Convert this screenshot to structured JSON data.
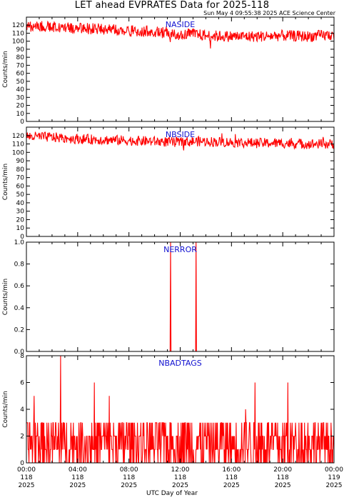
{
  "figure": {
    "title": "LET ahead EVPRATES Data for 2025-118",
    "subtitle": "Sun May  4 09:55:38 2025 ACE Science Center",
    "xlabel": "UTC Day of Year"
  },
  "colors": {
    "series": "#ff0000",
    "panel_title": "#1010d0",
    "axes": "#000000"
  },
  "chart_data": [
    {
      "type": "line",
      "title": "NASIDE",
      "ylabel": "Counts/min",
      "ylim": [
        0,
        130
      ],
      "yticks": [
        0,
        10,
        20,
        30,
        40,
        50,
        60,
        70,
        80,
        90,
        100,
        110,
        120
      ],
      "xlim": [
        0,
        24
      ],
      "x": [
        0,
        2,
        4,
        6,
        8,
        10,
        11,
        12,
        13,
        14,
        16,
        18,
        20,
        22,
        24
      ],
      "series": [
        {
          "values": [
            119,
            118,
            116,
            115,
            113,
            112,
            110,
            108,
            109,
            107,
            106,
            106,
            107,
            106,
            108
          ]
        }
      ],
      "noise": 7
    },
    {
      "type": "line",
      "title": "NBSIDE",
      "ylabel": "Counts/min",
      "ylim": [
        0,
        130
      ],
      "yticks": [
        0,
        10,
        20,
        30,
        40,
        50,
        60,
        70,
        80,
        90,
        100,
        110,
        120
      ],
      "xlim": [
        0,
        24
      ],
      "x": [
        0,
        2,
        4,
        6,
        8,
        10,
        12,
        13,
        14,
        16,
        18,
        20,
        22,
        24
      ],
      "series": [
        {
          "values": [
            119,
            118,
            116,
            115,
            114,
            113,
            112,
            113,
            113,
            112,
            111,
            111,
            110,
            110
          ]
        }
      ],
      "noise": 6
    },
    {
      "type": "line",
      "title": "NERROR",
      "ylabel": "Counts/min",
      "ylim": [
        0,
        1.0
      ],
      "yticks": [
        0.0,
        0.2,
        0.4,
        0.6,
        0.8,
        1.0
      ],
      "tick_decimals": 1,
      "xlim": [
        0,
        24
      ],
      "baseline": 0,
      "spikes": [
        {
          "x": 11.25,
          "y": 1
        },
        {
          "x": 13.25,
          "y": 1
        }
      ]
    },
    {
      "type": "line",
      "title": "NBADTAGS",
      "ylabel": "Counts/min",
      "ylim": [
        0,
        8
      ],
      "yticks": [
        0,
        2,
        4,
        6,
        8
      ],
      "xlim": [
        0,
        24
      ],
      "discrete_values": [
        0,
        1,
        2,
        3,
        4,
        5,
        6,
        8
      ],
      "typical_range": [
        0,
        3
      ],
      "max_value": 8
    }
  ],
  "xaxis": {
    "ticks": [
      {
        "time": "00:00",
        "day": "118",
        "year": "2025",
        "hour": 0
      },
      {
        "time": "04:00",
        "day": "118",
        "year": "2025",
        "hour": 4
      },
      {
        "time": "08:00",
        "day": "118",
        "year": "2025",
        "hour": 8
      },
      {
        "time": "12:00",
        "day": "118",
        "year": "2025",
        "hour": 12
      },
      {
        "time": "16:00",
        "day": "118",
        "year": "2025",
        "hour": 16
      },
      {
        "time": "20:00",
        "day": "118",
        "year": "2025",
        "hour": 20
      },
      {
        "time": "00:00",
        "day": "119",
        "year": "2025",
        "hour": 24
      }
    ]
  }
}
